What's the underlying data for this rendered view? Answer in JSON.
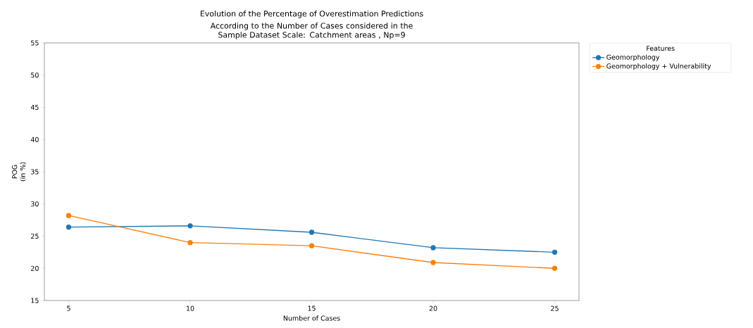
{
  "chart_data": {
    "type": "line",
    "title": "Evolution of the Percentage of Overestimation Predictions",
    "subtitle": "According to the Number of Cases considered in the Sample Dataset Scale: Catchment areas , Np=9",
    "xlabel": "Number of Cases",
    "ylabel": "POG (in %)",
    "legend_title": "Features",
    "x": [
      5,
      10,
      15,
      20,
      25
    ],
    "series": [
      {
        "name": "Geomorphology",
        "color": "#1f77b4",
        "values": [
          26.4,
          26.6,
          25.6,
          23.2,
          22.5
        ]
      },
      {
        "name": "Geomorphology + Vulnerability",
        "color": "#ff7f0e",
        "values": [
          28.2,
          24.0,
          23.5,
          20.9,
          20.0
        ]
      }
    ],
    "xlim": [
      4,
      26
    ],
    "ylim": [
      15,
      55
    ],
    "xticks": [
      5,
      10,
      15,
      20,
      25
    ],
    "yticks": [
      15,
      20,
      25,
      30,
      35,
      40,
      45,
      50,
      55
    ],
    "grid": false,
    "legend": "top right",
    "marker": "circle",
    "line_style": "solid"
  }
}
